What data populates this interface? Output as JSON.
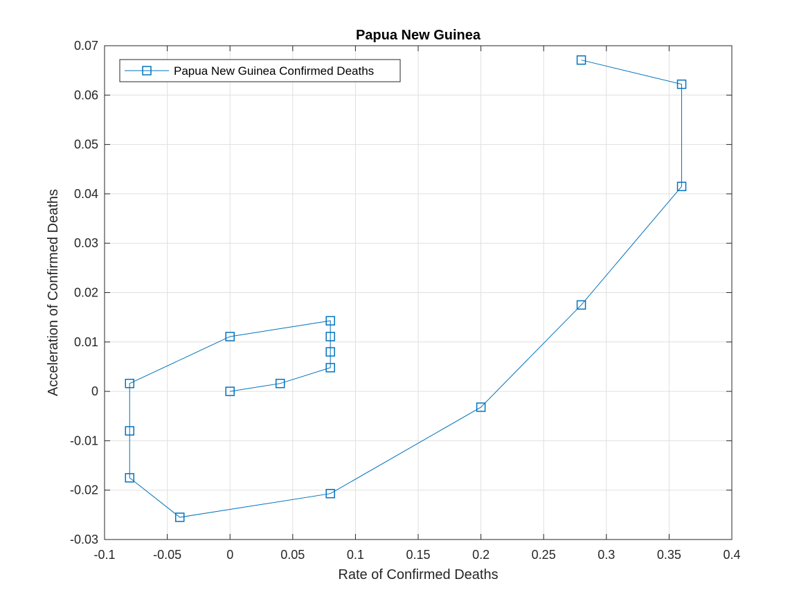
{
  "chart_data": {
    "type": "line",
    "title": "Papua New Guinea",
    "xlabel": "Rate of Confirmed Deaths",
    "ylabel": "Acceleration of Confirmed Deaths",
    "xlim": [
      -0.1,
      0.4
    ],
    "ylim": [
      -0.03,
      0.07
    ],
    "xticks": [
      -0.1,
      -0.05,
      0,
      0.05,
      0.1,
      0.15,
      0.2,
      0.25,
      0.3,
      0.35,
      0.4
    ],
    "xtick_labels": [
      "-0.1",
      "-0.05",
      "0",
      "0.05",
      "0.1",
      "0.15",
      "0.2",
      "0.25",
      "0.3",
      "0.35",
      "0.4"
    ],
    "yticks": [
      -0.03,
      -0.02,
      -0.01,
      0,
      0.01,
      0.02,
      0.03,
      0.04,
      0.05,
      0.06,
      0.07
    ],
    "ytick_labels": [
      "-0.03",
      "-0.02",
      "-0.01",
      "0",
      "0.01",
      "0.02",
      "0.03",
      "0.04",
      "0.05",
      "0.06",
      "0.07"
    ],
    "grid": true,
    "legend_position": "top-left",
    "series": [
      {
        "name": "Papua New Guinea Confirmed Deaths",
        "color": "#0072BD",
        "marker": "square",
        "x": [
          0,
          0.04,
          0.08,
          0.08,
          0.08,
          0.08,
          0,
          -0.08,
          -0.08,
          -0.08,
          -0.04,
          0.08,
          0.2,
          0.28,
          0.36,
          0.36,
          0.28
        ],
        "y": [
          0,
          0.0016,
          0.0048,
          0.008,
          0.0111,
          0.0143,
          0.0111,
          0.0016,
          -0.008,
          -0.0175,
          -0.0255,
          -0.0207,
          -0.0032,
          0.0175,
          0.0415,
          0.0622,
          0.0671
        ]
      }
    ]
  }
}
